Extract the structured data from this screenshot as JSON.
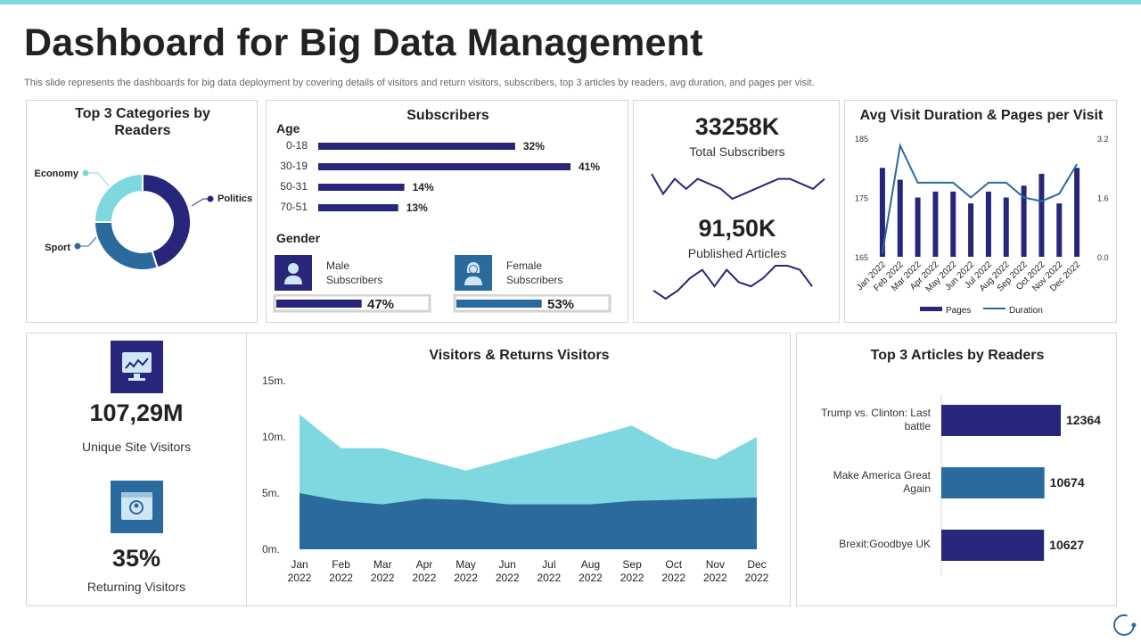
{
  "colors": {
    "navy": "#27267a",
    "blue": "#2b6a9c",
    "cyan": "#7fd7df",
    "accent": "#7fd7df",
    "border": "#d6d6d6"
  },
  "header": {
    "title": "Dashboard for Big Data Management",
    "subtitle": "This slide represents the dashboards for big data deployment by covering details of visitors and return visitors, subscribers, top 3 articles by readers, avg duration, and pages per visit."
  },
  "categories_panel": {
    "title_line1": "Top 3 Categories by",
    "title_line2": "Readers"
  },
  "subscribers_panel": {
    "title": "Subscribers",
    "age_label": "Age",
    "gender_label": "Gender",
    "male_label_line1": "Male",
    "male_label_line2": "Subscribers",
    "female_label_line1": "Female",
    "female_label_line2": "Subscribers",
    "male_icon": "male-user-icon",
    "female_icon": "female-user-icon"
  },
  "totals_panel": {
    "total_value": "33258K",
    "total_label": "Total Subscribers",
    "published_value": "91,50K",
    "published_label": "Published Articles"
  },
  "visit_panel": {
    "title": "Avg Visit Duration & Pages per Visit"
  },
  "visitors_stats": {
    "unique_value": "107,29M",
    "unique_label": "Unique Site Visitors",
    "returning_value": "35%",
    "returning_label": "Returning Visitors",
    "unique_icon": "monitor-chart-icon",
    "returning_icon": "browser-user-icon"
  },
  "visitors_panel": {
    "title": "Visitors & Returns Visitors"
  },
  "articles_panel": {
    "title": "Top 3 Articles by Readers"
  },
  "chart_data": [
    {
      "id": "categories",
      "type": "pie",
      "donut": true,
      "labels": [
        "Politics",
        "Sport",
        "Economy"
      ],
      "values": [
        45,
        30,
        25
      ],
      "colors": [
        "#27267a",
        "#2b6a9c",
        "#7fd7df"
      ]
    },
    {
      "id": "age",
      "type": "bar",
      "orientation": "horizontal",
      "categories": [
        "0-18",
        "30-19",
        "50-31",
        "70-51"
      ],
      "values": [
        32,
        41,
        14,
        13
      ],
      "value_labels": [
        "32%",
        "41%",
        "14%",
        "13%"
      ],
      "xlim": [
        0,
        41
      ]
    },
    {
      "id": "gender",
      "type": "bar",
      "orientation": "horizontal",
      "categories": [
        "Male Subscribers",
        "Female Subscribers"
      ],
      "values": [
        47,
        53
      ],
      "value_labels": [
        "47%",
        "53%"
      ],
      "xlim": [
        0,
        100
      ]
    },
    {
      "id": "subscribers_trend",
      "type": "line",
      "values": [
        7,
        3,
        6,
        4,
        6,
        5,
        4,
        2,
        3,
        4,
        5,
        6,
        6,
        5,
        4,
        6
      ]
    },
    {
      "id": "articles_trend",
      "type": "line",
      "values": [
        4,
        2,
        4,
        7,
        9,
        5,
        9,
        6,
        5,
        7,
        10,
        10,
        9,
        5
      ]
    },
    {
      "id": "visit",
      "type": "bar",
      "categories": [
        "Jan 2022",
        "Feb 2022",
        "Mar 2022",
        "Apr 2022",
        "May 2022",
        "Jun 2022",
        "Jul 2022",
        "Aug 2022",
        "Sep 2022",
        "Oct 2022",
        "Nov 2022",
        "Dec 2022"
      ],
      "ylim": [
        165,
        185
      ],
      "y_ticks": [
        "185",
        "175",
        "165"
      ],
      "y2lim": [
        0,
        3.2
      ],
      "y2_ticks": [
        "3.2",
        "1.6",
        "0.0"
      ],
      "series": [
        {
          "name": "Pages",
          "type": "bar",
          "axis": "left",
          "values": [
            180,
            178,
            175,
            176,
            176,
            174,
            176,
            175,
            177,
            179,
            174,
            180
          ]
        },
        {
          "name": "Duration",
          "type": "line",
          "axis": "right",
          "values": [
            0.1,
            3.0,
            2.0,
            2.0,
            2.0,
            1.6,
            2.0,
            2.0,
            1.6,
            1.5,
            1.7,
            2.5
          ]
        }
      ],
      "legend": "bottom"
    },
    {
      "id": "visitors",
      "type": "area",
      "stacked": false,
      "categories": [
        "Jan 2022",
        "Feb 2022",
        "Mar 2022",
        "Apr 2022",
        "May 2022",
        "Jun 2022",
        "Jul 2022",
        "Aug 2022",
        "Sep 2022",
        "Oct 2022",
        "Nov 2022",
        "Dec 2022"
      ],
      "cat_line1": [
        "Jan",
        "Feb",
        "Mar",
        "Apr",
        "May",
        "Jun",
        "Jul",
        "Aug",
        "Sep",
        "Oct",
        "Nov",
        "Dec"
      ],
      "cat_line2": [
        "2022",
        "2022",
        "2022",
        "2022",
        "2022",
        "2022",
        "2022",
        "2022",
        "2022",
        "2022",
        "2022",
        "2022"
      ],
      "ylim": [
        0,
        15
      ],
      "y_ticks": [
        {
          "value": 15,
          "label": "15m."
        },
        {
          "value": 10,
          "label": "10m."
        },
        {
          "value": 5,
          "label": "5m."
        },
        {
          "value": 0,
          "label": "0m."
        }
      ],
      "series": [
        {
          "values": [
            12,
            9,
            9,
            8,
            7,
            8,
            9,
            10,
            11,
            9,
            8,
            10
          ],
          "color": "#7fd7df"
        },
        {
          "values": [
            5,
            4.3,
            4,
            4.5,
            4.4,
            4,
            4,
            4,
            4.3,
            4.4,
            4.5,
            4.6
          ],
          "color": "#2b6a9c"
        }
      ]
    },
    {
      "id": "articles",
      "type": "bar",
      "orientation": "horizontal",
      "categories": [
        "Trump vs. Clinton: Last battle",
        "Make America Great Again",
        "Brexit:Goodbye UK"
      ],
      "cat_line1": [
        "Trump vs. Clinton: Last",
        "Make America Great",
        "Brexit:Goodbye UK"
      ],
      "cat_line2": [
        "battle",
        "Again",
        ""
      ],
      "values": [
        12364,
        10674,
        10627
      ],
      "colors": [
        "#27267a",
        "#2b6a9c",
        "#27267a"
      ],
      "xlim": [
        0,
        12364
      ]
    }
  ]
}
